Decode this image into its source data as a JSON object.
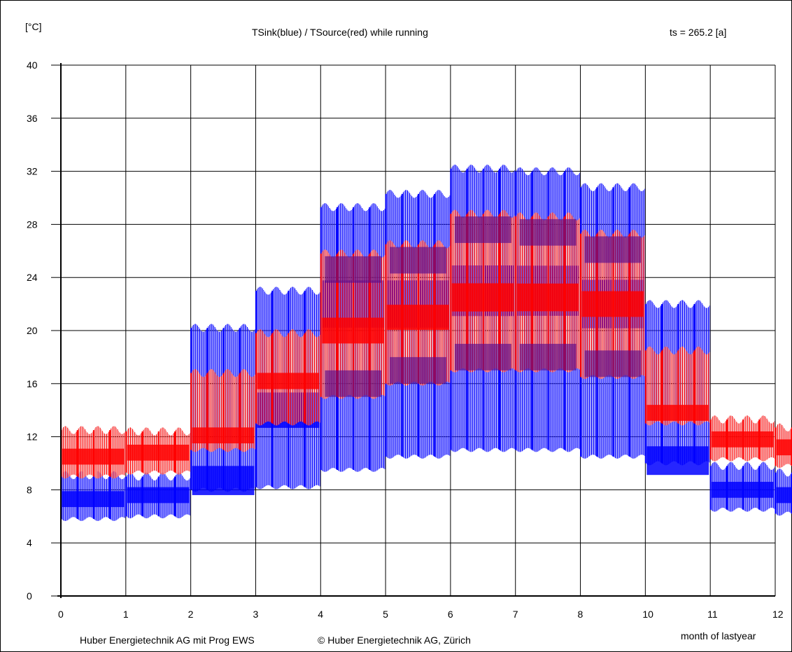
{
  "chart_data": {
    "type": "line",
    "title": "TSink(blue) / TSource(red) while running",
    "ylabel": "[°C]",
    "xlabel": "month of lastyear",
    "annotation": "ts = 265.2 [a]",
    "footer_left": "Huber Energietechnik AG mit Prog EWS",
    "footer_right": "© Huber Energietechnik AG, Zürich",
    "ylim": [
      0,
      40
    ],
    "yticks": [
      0,
      4,
      8,
      12,
      16,
      20,
      24,
      28,
      32,
      36,
      40
    ],
    "xticks": [
      "0",
      "1",
      "2",
      "3",
      "4",
      "5",
      "6",
      "7",
      "8",
      "10",
      "11",
      "12"
    ],
    "grid": true,
    "colors": {
      "sink": "#0000ff",
      "source": "#ff0000",
      "source_light": "#f08080",
      "overlap": "#5a0a8c"
    },
    "series": [
      {
        "name": "TSink(blue)",
        "color": "#0000ff",
        "months": [
          {
            "month": 0,
            "min": 5.8,
            "max": 9.1,
            "center": 7.3
          },
          {
            "month": 1,
            "min": 6.0,
            "max": 9.0,
            "center": 7.6
          },
          {
            "month": 2,
            "min": 8.0,
            "max": 20.2,
            "center": 8.7
          },
          {
            "month": 3,
            "min": 8.2,
            "max": 23.0,
            "center": 14.0
          },
          {
            "month": 4,
            "min": 9.5,
            "max": 29.3,
            "center": 22.0
          },
          {
            "month": 5,
            "min": 10.5,
            "max": 30.3,
            "center": 22.0
          },
          {
            "month": 6,
            "min": 11.0,
            "max": 32.2,
            "center": 23.0
          },
          {
            "month": 7,
            "min": 11.0,
            "max": 32.0,
            "center": 23.0
          },
          {
            "month": 8,
            "min": 10.5,
            "max": 30.8,
            "center": 22.0
          },
          {
            "month": 9,
            "min": 10.0,
            "max": 22.0,
            "center": 10.2
          },
          {
            "month": 10,
            "min": 6.5,
            "max": 9.8,
            "center": 8.0
          },
          {
            "month": 11,
            "min": 6.2,
            "max": 9.3,
            "center": 7.6
          }
        ]
      },
      {
        "name": "TSource(red)",
        "color": "#ff0000",
        "months": [
          {
            "month": 0,
            "min": 9.0,
            "max": 12.5,
            "center": 10.5
          },
          {
            "month": 1,
            "min": 9.3,
            "max": 12.4,
            "center": 10.8
          },
          {
            "month": 2,
            "min": 11.0,
            "max": 16.8,
            "center": 12.1
          },
          {
            "month": 3,
            "min": 13.0,
            "max": 19.8,
            "center": 16.2
          },
          {
            "month": 4,
            "min": 15.0,
            "max": 25.8,
            "center": 20.0
          },
          {
            "month": 5,
            "min": 16.0,
            "max": 26.5,
            "center": 21.0
          },
          {
            "month": 6,
            "min": 17.0,
            "max": 28.8,
            "center": 22.5
          },
          {
            "month": 7,
            "min": 17.0,
            "max": 28.6,
            "center": 22.5
          },
          {
            "month": 8,
            "min": 16.5,
            "max": 27.3,
            "center": 22.0
          },
          {
            "month": 9,
            "min": 13.0,
            "max": 18.5,
            "center": 13.8
          },
          {
            "month": 10,
            "min": 10.3,
            "max": 13.3,
            "center": 11.8
          },
          {
            "month": 11,
            "min": 9.8,
            "max": 12.7,
            "center": 11.2
          }
        ]
      }
    ]
  }
}
